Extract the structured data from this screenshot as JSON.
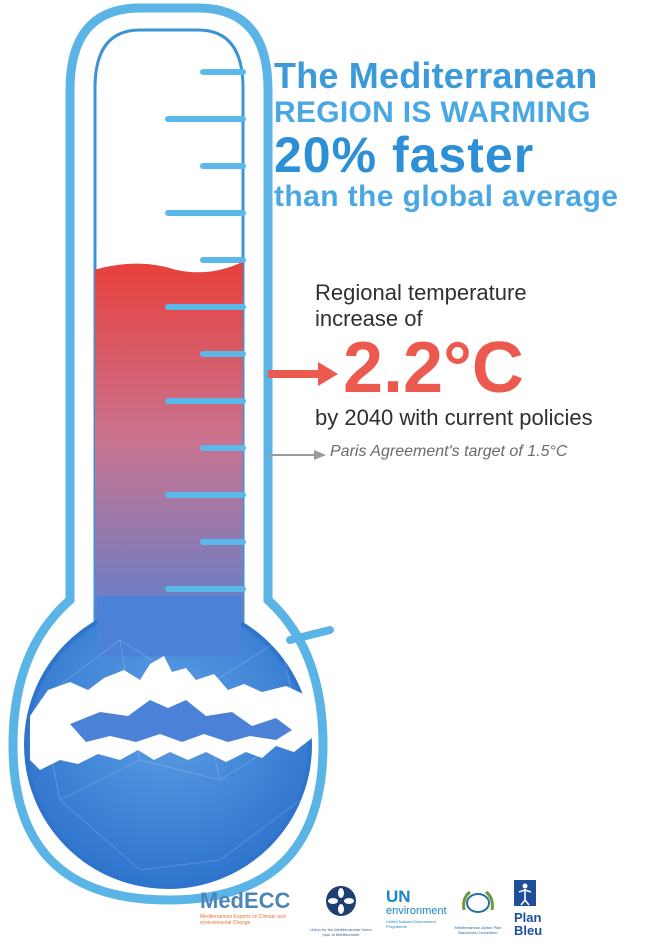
{
  "headline": {
    "line1": "The Mediterranean",
    "line2": "REGION IS WARMING",
    "line3": "20% faster",
    "line4": "than the global average"
  },
  "regional_increase": {
    "label_line1": "Regional temperature",
    "label_line2": "increase of",
    "value": "2.2°C",
    "context": "by 2040 with current policies"
  },
  "paris_target": {
    "text": "Paris Agreement's target of 1.5°C"
  },
  "thermometer": {
    "fill_fraction": 0.62,
    "tick_count": 12,
    "colors": {
      "tube_outline": "#5ab4e6",
      "tube_outline_dark": "#3b94d6",
      "fill_top": "#e8403b",
      "fill_mid": "#c9738f",
      "fill_bottom": "#4b82d8",
      "bulb": "#3f86da",
      "tick": "#5ab8ea"
    }
  },
  "colors": {
    "headline_blue": "#3b9ad9",
    "temp_red": "#ec5a4f",
    "body_text": "#2f2f2f",
    "note_grey": "#6b6b6b"
  },
  "logos": {
    "medecc": {
      "name": "MedECC",
      "subtitle": "Mediterranean Experts on Climate and environmental Change"
    },
    "ufm": {
      "icon": "ufm-emblem-icon",
      "text": "Union for the Mediterranean Union pour la Méditerranée"
    },
    "unep": {
      "name": "UN",
      "name2": "environment",
      "subtitle": "United Nations Environment Programme"
    },
    "map": {
      "icon": "map-laurel-icon",
      "subtitle": "Mediterranean Action Plan Barcelona Convention"
    },
    "planbleu": {
      "icon": "plan-bleu-figure-icon",
      "line1": "Plan",
      "line2": "Bleu"
    }
  }
}
